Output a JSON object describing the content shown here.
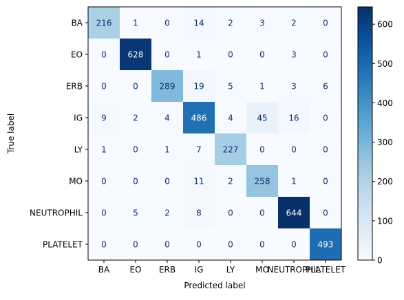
{
  "chart_data": {
    "type": "heatmap",
    "title": "",
    "xlabel": "Predicted label",
    "ylabel": "True label",
    "x_categories": [
      "BA",
      "EO",
      "ERB",
      "IG",
      "LY",
      "MO",
      "NEUTROPHIL",
      "PLATELET"
    ],
    "y_categories": [
      "BA",
      "EO",
      "ERB",
      "IG",
      "LY",
      "MO",
      "NEUTROPHIL",
      "PLATELET"
    ],
    "matrix": [
      [
        216,
        1,
        0,
        14,
        2,
        3,
        2,
        0
      ],
      [
        0,
        628,
        0,
        1,
        0,
        0,
        3,
        0
      ],
      [
        0,
        0,
        289,
        19,
        5,
        1,
        3,
        6
      ],
      [
        9,
        2,
        4,
        486,
        4,
        45,
        16,
        0
      ],
      [
        1,
        0,
        1,
        7,
        227,
        0,
        0,
        0
      ],
      [
        0,
        0,
        0,
        11,
        2,
        258,
        1,
        0
      ],
      [
        0,
        5,
        2,
        8,
        0,
        0,
        644,
        0
      ],
      [
        0,
        0,
        0,
        0,
        0,
        0,
        0,
        493
      ]
    ],
    "colormap": "Blues",
    "colorbar": {
      "range": [
        0,
        644
      ],
      "ticks": [
        0,
        100,
        200,
        300,
        400,
        500,
        600
      ]
    }
  }
}
